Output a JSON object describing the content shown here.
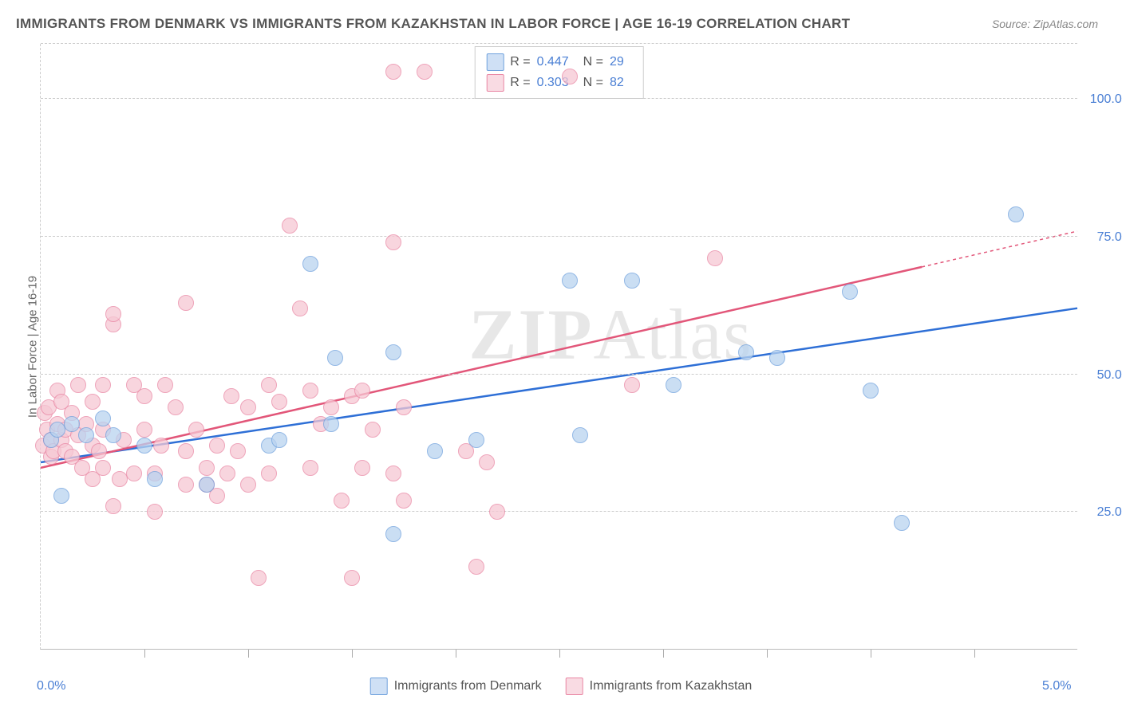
{
  "title": "IMMIGRANTS FROM DENMARK VS IMMIGRANTS FROM KAZAKHSTAN IN LABOR FORCE | AGE 16-19 CORRELATION CHART",
  "source": "Source: ZipAtlas.com",
  "watermark": "ZIPAtlas",
  "y_axis_title": "In Labor Force | Age 16-19",
  "xlim": [
    0.0,
    5.0
  ],
  "ylim": [
    0.0,
    110.0
  ],
  "x_ticks_major": [
    0.0,
    5.0
  ],
  "x_ticks_minor": [
    0.5,
    1.0,
    1.5,
    2.0,
    2.5,
    3.0,
    3.5,
    4.0,
    4.5
  ],
  "x_tick_labels": {
    "0.0": "0.0%",
    "5.0": "5.0%"
  },
  "y_gridlines": [
    25.0,
    50.0,
    75.0,
    100.0,
    110.0
  ],
  "y_tick_labels": {
    "25.0": "25.0%",
    "50.0": "50.0%",
    "75.0": "75.0%",
    "100.0": "100.0%"
  },
  "series": [
    {
      "name": "Immigrants from Denmark",
      "color_fill": "#b9d3f0",
      "color_stroke": "#6fa1dd",
      "swatch_fill": "#cfe0f5",
      "swatch_border": "#6fa1dd",
      "marker_radius": 10,
      "marker_opacity": 0.75,
      "stats": {
        "R": "0.447",
        "N": "29"
      },
      "trend": {
        "x1": 0.0,
        "y1": 34.0,
        "x2": 5.0,
        "y2": 62.0,
        "color": "#2e6fd6",
        "width": 2.5
      },
      "points": [
        [
          0.05,
          38
        ],
        [
          0.08,
          40
        ],
        [
          0.1,
          28
        ],
        [
          0.15,
          41
        ],
        [
          0.22,
          39
        ],
        [
          0.3,
          42
        ],
        [
          0.35,
          39
        ],
        [
          0.5,
          37
        ],
        [
          0.55,
          31
        ],
        [
          0.8,
          30
        ],
        [
          1.1,
          37
        ],
        [
          1.15,
          38
        ],
        [
          1.3,
          70
        ],
        [
          1.4,
          41
        ],
        [
          1.42,
          53
        ],
        [
          1.7,
          54
        ],
        [
          1.7,
          21
        ],
        [
          1.9,
          36
        ],
        [
          2.1,
          38
        ],
        [
          2.55,
          67
        ],
        [
          2.6,
          39
        ],
        [
          2.85,
          67
        ],
        [
          3.05,
          48
        ],
        [
          3.4,
          54
        ],
        [
          3.55,
          53
        ],
        [
          3.9,
          65
        ],
        [
          4.0,
          47
        ],
        [
          4.15,
          23
        ],
        [
          4.7,
          79
        ]
      ]
    },
    {
      "name": "Immigrants from Kazakhstan",
      "color_fill": "#f6c8d4",
      "color_stroke": "#e986a3",
      "swatch_fill": "#f9dbe3",
      "swatch_border": "#e986a3",
      "marker_radius": 10,
      "marker_opacity": 0.75,
      "stats": {
        "R": "0.303",
        "N": "82"
      },
      "trend": {
        "x1": 0.0,
        "y1": 33.0,
        "x2": 4.25,
        "y2": 69.5,
        "color": "#e25679",
        "width": 2.5,
        "dash_ext": {
          "x2": 5.0,
          "y2": 76.0
        }
      },
      "points": [
        [
          0.01,
          37
        ],
        [
          0.02,
          43
        ],
        [
          0.03,
          40
        ],
        [
          0.04,
          44
        ],
        [
          0.05,
          35
        ],
        [
          0.05,
          38
        ],
        [
          0.06,
          36
        ],
        [
          0.08,
          41
        ],
        [
          0.08,
          47
        ],
        [
          0.1,
          45
        ],
        [
          0.1,
          38
        ],
        [
          0.12,
          40
        ],
        [
          0.12,
          36
        ],
        [
          0.15,
          43
        ],
        [
          0.15,
          35
        ],
        [
          0.18,
          39
        ],
        [
          0.18,
          48
        ],
        [
          0.2,
          33
        ],
        [
          0.22,
          41
        ],
        [
          0.25,
          37
        ],
        [
          0.25,
          31
        ],
        [
          0.25,
          45
        ],
        [
          0.28,
          36
        ],
        [
          0.3,
          40
        ],
        [
          0.3,
          48
        ],
        [
          0.3,
          33
        ],
        [
          0.35,
          26
        ],
        [
          0.35,
          59
        ],
        [
          0.35,
          61
        ],
        [
          0.38,
          31
        ],
        [
          0.4,
          38
        ],
        [
          0.45,
          48
        ],
        [
          0.45,
          32
        ],
        [
          0.5,
          40
        ],
        [
          0.5,
          46
        ],
        [
          0.55,
          25
        ],
        [
          0.55,
          32
        ],
        [
          0.58,
          37
        ],
        [
          0.6,
          48
        ],
        [
          0.65,
          44
        ],
        [
          0.7,
          30
        ],
        [
          0.7,
          63
        ],
        [
          0.7,
          36
        ],
        [
          0.75,
          40
        ],
        [
          0.8,
          33
        ],
        [
          0.8,
          30
        ],
        [
          0.85,
          37
        ],
        [
          0.85,
          28
        ],
        [
          0.9,
          32
        ],
        [
          0.92,
          46
        ],
        [
          0.95,
          36
        ],
        [
          1.0,
          30
        ],
        [
          1.0,
          44
        ],
        [
          1.05,
          13
        ],
        [
          1.1,
          32
        ],
        [
          1.1,
          48
        ],
        [
          1.15,
          45
        ],
        [
          1.2,
          77
        ],
        [
          1.25,
          62
        ],
        [
          1.3,
          33
        ],
        [
          1.3,
          47
        ],
        [
          1.35,
          41
        ],
        [
          1.4,
          44
        ],
        [
          1.45,
          27
        ],
        [
          1.5,
          13
        ],
        [
          1.5,
          46
        ],
        [
          1.55,
          47
        ],
        [
          1.55,
          33
        ],
        [
          1.6,
          40
        ],
        [
          1.7,
          105
        ],
        [
          1.7,
          74
        ],
        [
          1.7,
          32
        ],
        [
          1.75,
          27
        ],
        [
          1.75,
          44
        ],
        [
          1.85,
          105
        ],
        [
          2.05,
          36
        ],
        [
          2.1,
          15
        ],
        [
          2.15,
          34
        ],
        [
          2.2,
          25
        ],
        [
          2.55,
          104
        ],
        [
          2.85,
          48
        ],
        [
          3.25,
          71
        ]
      ]
    }
  ],
  "legend_labels": {
    "denmark": "Immigrants from Denmark",
    "kazakhstan": "Immigrants from Kazakhstan"
  },
  "stats_labels": {
    "R": "R =",
    "N": "N ="
  }
}
